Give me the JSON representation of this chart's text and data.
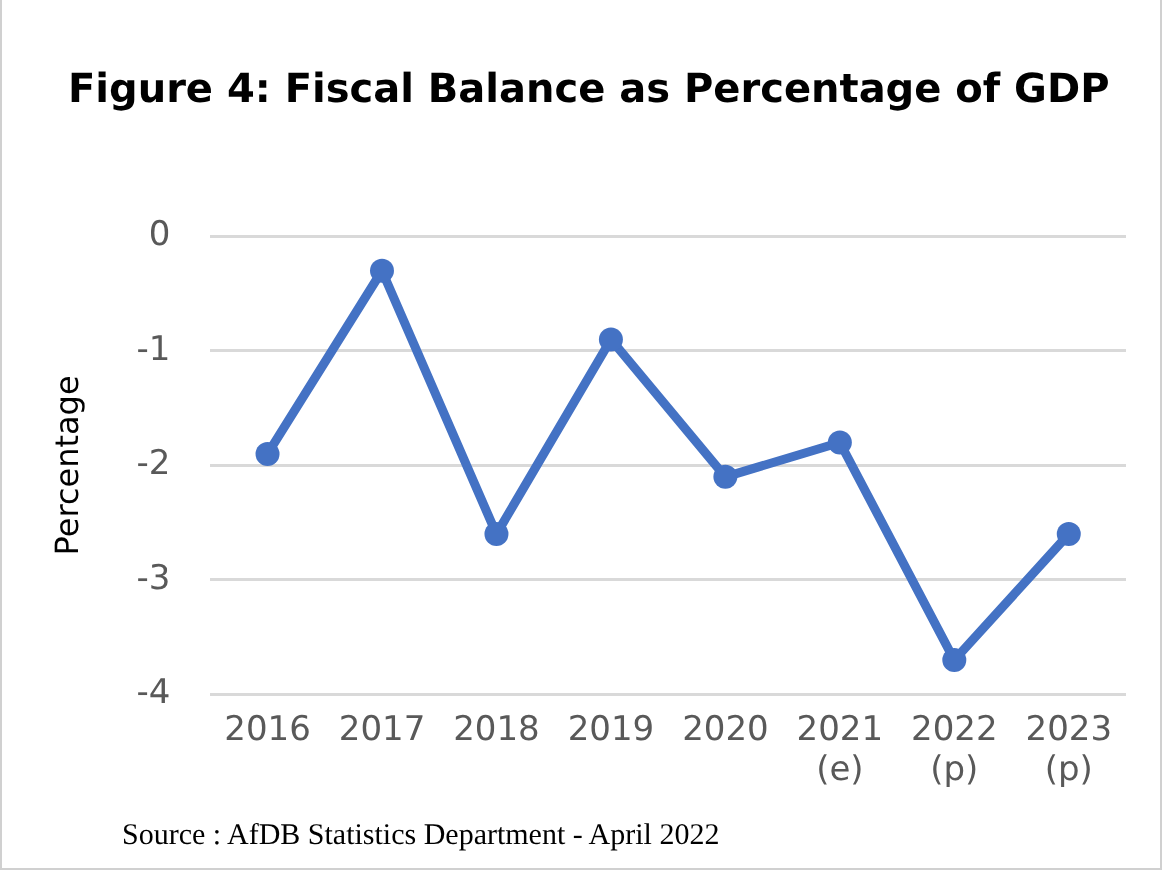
{
  "chart_data": {
    "type": "line",
    "title": "Figure 4: Fiscal Balance as Percentage of GDP",
    "ylabel": "Percentage",
    "categories": [
      "2016",
      "2017",
      "2018",
      "2019",
      "2020",
      "2021 (e)",
      "2022 (p)",
      "2023 (p)"
    ],
    "series": [
      {
        "color": "#4472c4",
        "values": [
          -1.9,
          -0.3,
          -2.6,
          -0.9,
          -2.1,
          -1.8,
          -3.7,
          -2.6
        ]
      }
    ],
    "ylim": [
      -4,
      0
    ],
    "yticks": [
      -4,
      -3,
      -2,
      -1,
      0
    ],
    "grid": "y",
    "legend": false,
    "marker": "circle",
    "line_style": "solid",
    "annotations": [
      "Source : AfDB Statistics Department - April 2022"
    ]
  }
}
